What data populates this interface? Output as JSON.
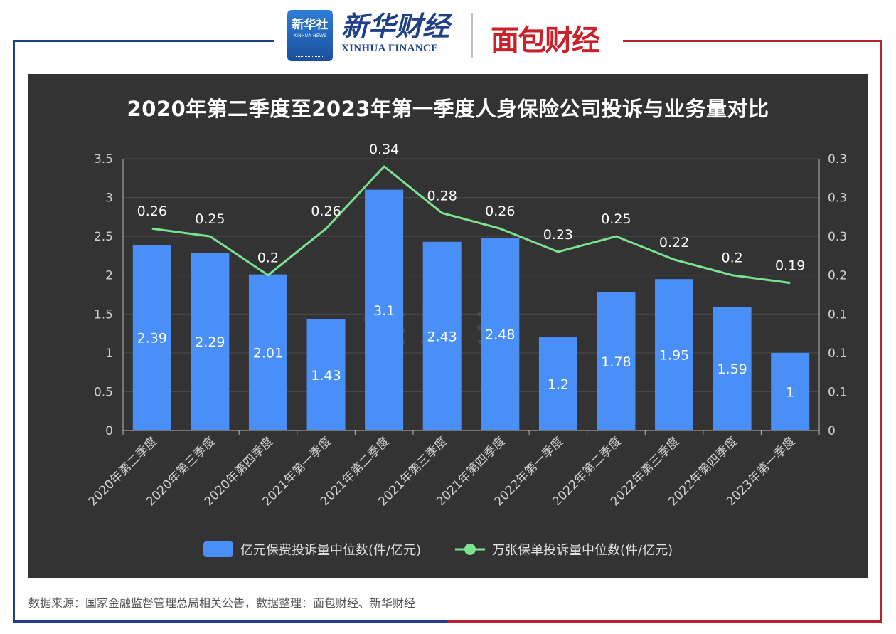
{
  "header": {
    "xinhua_logo_cn": "新华社",
    "xinhua_logo_en": "XINHUA NEWS",
    "finance_cn": "新华财经",
    "finance_en": "XINHUA FINANCE",
    "partner_logo": "面包财经"
  },
  "watermark": "读财报",
  "source_note": "数据来源：国家金融监督管理总局相关公告，数据整理：面包财经、新华财经",
  "colors": {
    "panel_bg": "#333333",
    "bar": "#4a8ff7",
    "line": "#7be28f",
    "frame_blue": "#1f3f86",
    "frame_red": "#b5232c"
  },
  "chart_data": {
    "type": "bar",
    "title": "2020年第二季度至2023年第一季度人身保险公司投诉与业务量对比",
    "categories": [
      "2020年第二季度",
      "2020年第三季度",
      "2020年第四季度",
      "2021年第一季度",
      "2021年第二季度",
      "2021年第三季度",
      "2021年第四季度",
      "2022年第一季度",
      "2022年第二季度",
      "2022年第三季度",
      "2022年第四季度",
      "2023年第一季度"
    ],
    "series": [
      {
        "name": "亿元保费投诉量中位数(件/亿元)",
        "type": "bar",
        "axis": "left",
        "values": [
          2.39,
          2.29,
          2.01,
          1.43,
          3.1,
          2.43,
          2.48,
          1.2,
          1.78,
          1.95,
          1.59,
          1
        ]
      },
      {
        "name": "万张保单投诉量中位数(件/亿元)",
        "type": "line",
        "axis": "right",
        "values": [
          0.26,
          0.25,
          0.2,
          0.26,
          0.34,
          0.28,
          0.26,
          0.23,
          0.25,
          0.22,
          0.2,
          0.19
        ]
      }
    ],
    "left_axis": {
      "ylim": [
        0,
        3.5
      ],
      "ticks": [
        "0",
        "0.5",
        "1",
        "1.5",
        "2",
        "2.5",
        "3",
        "3.5"
      ]
    },
    "right_axis": {
      "ylim": [
        0,
        0.35
      ],
      "ticks": [
        "0",
        "0.1",
        "0.1",
        "0.1",
        "0.2",
        "0.3",
        "0.3",
        "0.3"
      ]
    },
    "grid": true,
    "legend_position": "bottom"
  }
}
